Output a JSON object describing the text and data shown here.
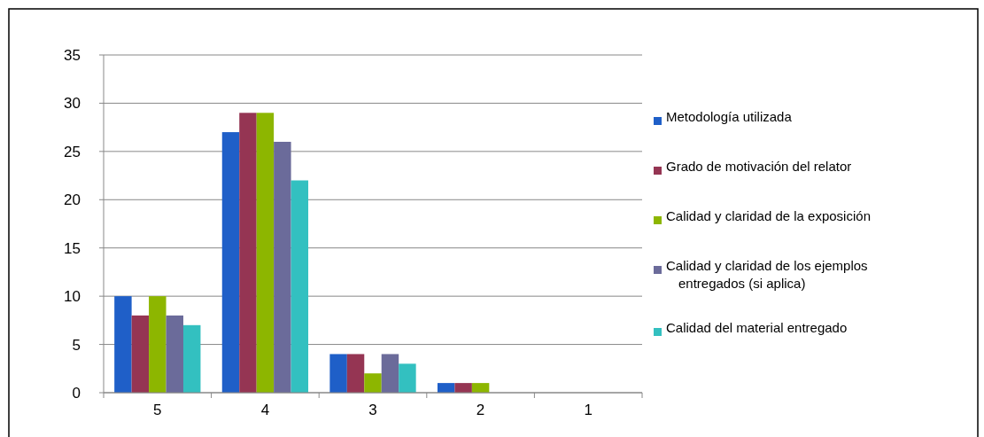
{
  "chart_data": {
    "type": "bar",
    "categories": [
      "5",
      "4",
      "3",
      "2",
      "1"
    ],
    "series": [
      {
        "name": "Metodología utilizada",
        "color": "#1f5fc8",
        "values": [
          10,
          27,
          4,
          1,
          0
        ]
      },
      {
        "name": "Grado de motivación del relator",
        "color": "#953553",
        "values": [
          8,
          29,
          4,
          1,
          0
        ]
      },
      {
        "name": "Calidad y claridad de la exposición",
        "color": "#8db600",
        "values": [
          10,
          29,
          2,
          1,
          0
        ]
      },
      {
        "name": "Calidad y claridad de los ejemplos entregados (si aplica)",
        "color": "#6b6b9a",
        "values": [
          8,
          26,
          4,
          0,
          0
        ]
      },
      {
        "name": "Calidad del material  entregado",
        "color": "#33c0c0",
        "values": [
          7,
          22,
          3,
          0,
          0
        ]
      }
    ],
    "ylim": [
      0,
      35
    ],
    "yticks": [
      0,
      5,
      10,
      15,
      20,
      25,
      30,
      35
    ],
    "grid": "y",
    "legend": "right"
  }
}
